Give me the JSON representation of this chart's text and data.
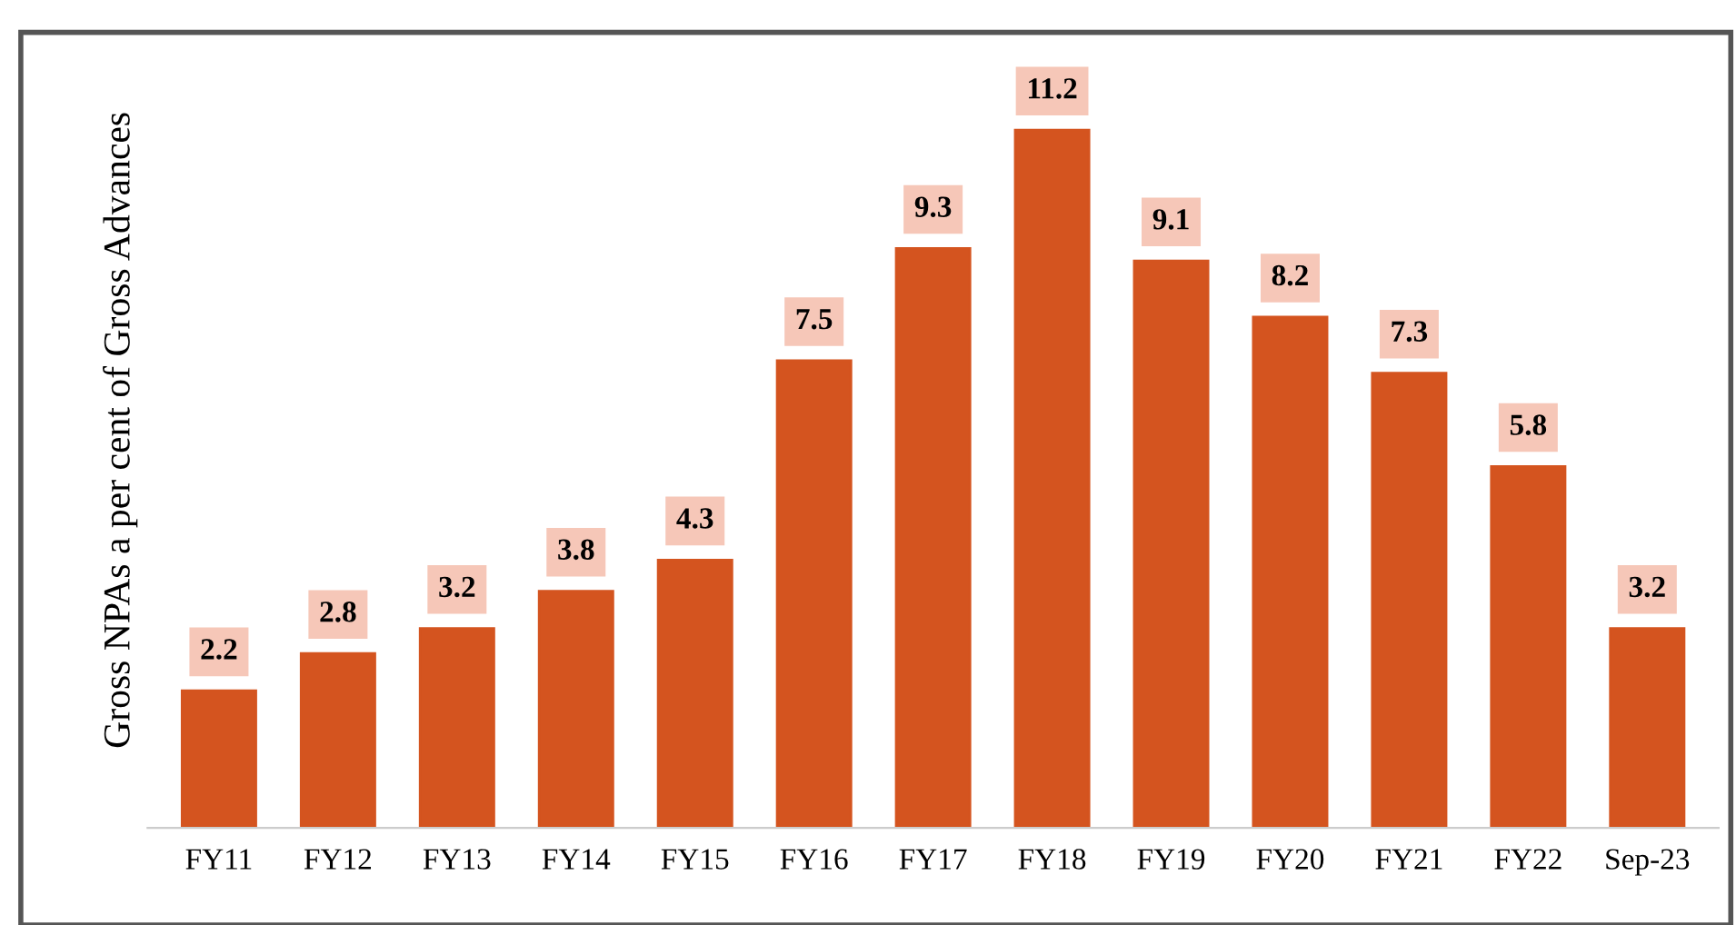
{
  "chart_data": {
    "type": "bar",
    "ylabel": "Gross NPAs a per cent of Gross Advances",
    "categories": [
      "FY11",
      "FY12",
      "FY13",
      "FY14",
      "FY15",
      "FY16",
      "FY17",
      "FY18",
      "FY19",
      "FY20",
      "FY21",
      "FY22",
      "Sep-23"
    ],
    "values": [
      2.2,
      2.8,
      3.2,
      3.8,
      4.3,
      7.5,
      9.3,
      11.2,
      9.1,
      8.2,
      7.3,
      5.8,
      3.2
    ],
    "color": "#d4541f",
    "data_labels": true,
    "grid": false,
    "legend": false
  }
}
